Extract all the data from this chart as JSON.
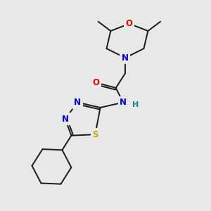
{
  "bg_color": "#e8e8e8",
  "bond_color": "#1a1a1a",
  "atom_colors": {
    "N": "#0000cc",
    "O": "#dd0000",
    "S": "#bbaa00",
    "H": "#008888",
    "C": "#1a1a1a"
  }
}
